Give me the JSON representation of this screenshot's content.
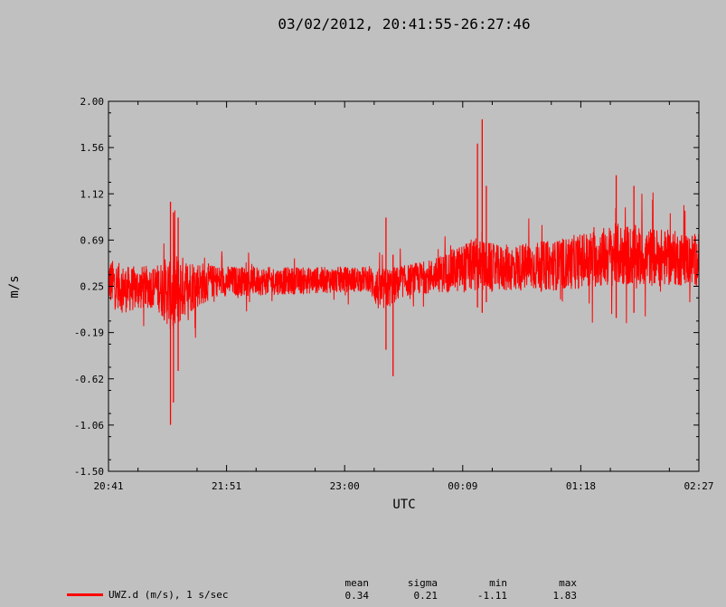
{
  "chart_data": {
    "type": "line",
    "title": "03/02/2012, 20:41:55-26:27:46",
    "xlabel": "UTC",
    "ylabel": "m/s",
    "x_tick_labels": [
      "20:41",
      "21:51",
      "23:00",
      "00:09",
      "01:18",
      "02:27"
    ],
    "y_tick_labels": [
      "2.00",
      "1.56",
      "1.12",
      "0.69",
      "0.25",
      "-0.19",
      "-0.62",
      "-1.06",
      "-1.50"
    ],
    "ylim": [
      -1.5,
      2.0
    ],
    "x_range": [
      "20:41:55",
      "26:27:46"
    ],
    "grid": false,
    "series": [
      {
        "name": "UWZ.d (m/s), 1 s/sec",
        "color": "#ff0000",
        "envelope": [
          {
            "t": 0.0,
            "center": 0.3,
            "spread": 0.22
          },
          {
            "t": 0.03,
            "center": 0.22,
            "spread": 0.22
          },
          {
            "t": 0.08,
            "center": 0.25,
            "spread": 0.2
          },
          {
            "t": 0.11,
            "center": 0.18,
            "spread": 0.4
          },
          {
            "t": 0.13,
            "center": 0.25,
            "spread": 0.28
          },
          {
            "t": 0.18,
            "center": 0.3,
            "spread": 0.15
          },
          {
            "t": 0.3,
            "center": 0.3,
            "spread": 0.13
          },
          {
            "t": 0.44,
            "center": 0.32,
            "spread": 0.12
          },
          {
            "t": 0.46,
            "center": 0.2,
            "spread": 0.22
          },
          {
            "t": 0.5,
            "center": 0.3,
            "spread": 0.15
          },
          {
            "t": 0.55,
            "center": 0.35,
            "spread": 0.16
          },
          {
            "t": 0.62,
            "center": 0.45,
            "spread": 0.26
          },
          {
            "t": 0.66,
            "center": 0.42,
            "spread": 0.22
          },
          {
            "t": 0.76,
            "center": 0.45,
            "spread": 0.24
          },
          {
            "t": 0.86,
            "center": 0.55,
            "spread": 0.3
          },
          {
            "t": 1.0,
            "center": 0.5,
            "spread": 0.25
          }
        ],
        "spikes": [
          {
            "t": 0.105,
            "high": 1.05,
            "low": -1.06
          },
          {
            "t": 0.11,
            "high": 0.95,
            "low": -0.85
          },
          {
            "t": 0.118,
            "high": 0.9,
            "low": -0.55
          },
          {
            "t": 0.47,
            "high": 0.9,
            "low": -0.35
          },
          {
            "t": 0.482,
            "high": 0.55,
            "low": -0.6
          },
          {
            "t": 0.625,
            "high": 1.6,
            "low": 0.05
          },
          {
            "t": 0.633,
            "high": 1.83,
            "low": 0.0
          },
          {
            "t": 0.64,
            "high": 1.2,
            "low": 0.1
          },
          {
            "t": 0.86,
            "high": 1.3,
            "low": -0.05
          },
          {
            "t": 0.89,
            "high": 1.2,
            "low": 0.0
          }
        ]
      }
    ],
    "legend": {
      "placement": "bottom-left"
    }
  },
  "stats": {
    "mean": {
      "label": "mean",
      "value": "0.34"
    },
    "sigma": {
      "label": "sigma",
      "value": "0.21"
    },
    "min": {
      "label": "min",
      "value": "-1.11"
    },
    "max": {
      "label": "max",
      "value": "1.83"
    }
  },
  "legend": {
    "label": "UWZ.d (m/s), 1 s/sec",
    "color": "#ff0000"
  }
}
